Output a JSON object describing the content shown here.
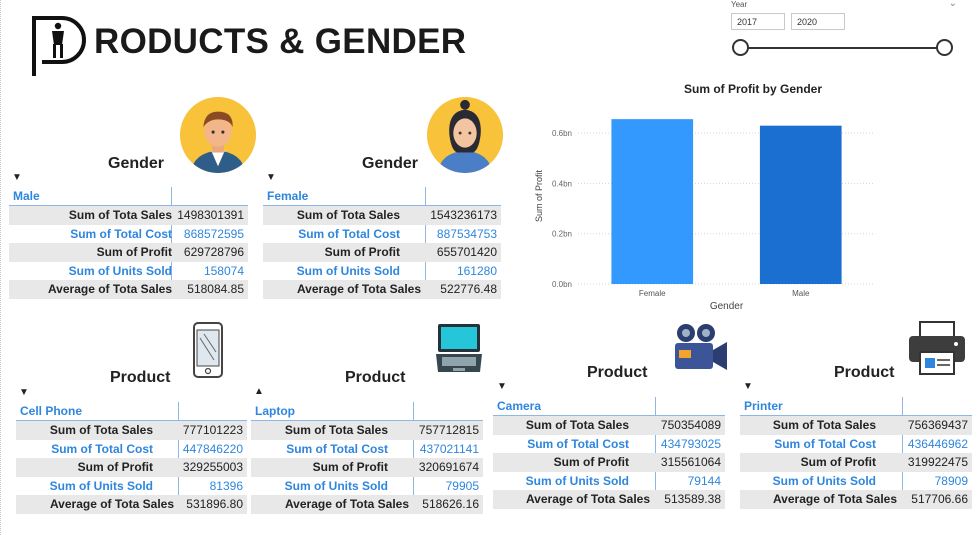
{
  "header": {
    "title": "RODUCTS & GENDER"
  },
  "slicer": {
    "label": "Year",
    "from": "2017",
    "to": "2020"
  },
  "gender_tables": [
    {
      "section_title": "Gender",
      "header": "Male",
      "rows": [
        {
          "label": "Sum of Tota Sales",
          "value": "1498301391"
        },
        {
          "label": "Sum of Total Cost",
          "value": "868572595"
        },
        {
          "label": "Sum of Profit",
          "value": "629728796"
        },
        {
          "label": "Sum of Units Sold",
          "value": "158074"
        },
        {
          "label": "Average of Tota Sales",
          "value": "518084.85"
        }
      ]
    },
    {
      "section_title": "Gender",
      "header": "Female",
      "rows": [
        {
          "label": "Sum of Tota Sales",
          "value": "1543236173"
        },
        {
          "label": "Sum of Total Cost",
          "value": "887534753"
        },
        {
          "label": "Sum of Profit",
          "value": "655701420"
        },
        {
          "label": "Sum of Units Sold",
          "value": "161280"
        },
        {
          "label": "Average of Tota Sales",
          "value": "522776.48"
        }
      ]
    }
  ],
  "product_tables": [
    {
      "section_title": "Product",
      "header": "Cell Phone",
      "rows": [
        {
          "label": "Sum of Tota Sales",
          "value": "777101223"
        },
        {
          "label": "Sum of Total Cost",
          "value": "447846220"
        },
        {
          "label": "Sum of Profit",
          "value": "329255003"
        },
        {
          "label": "Sum of Units Sold",
          "value": "81396"
        },
        {
          "label": "Average of Tota Sales",
          "value": "531896.80"
        }
      ]
    },
    {
      "section_title": "Product",
      "header": "Laptop",
      "rows": [
        {
          "label": "Sum of Tota Sales",
          "value": "757712815"
        },
        {
          "label": "Sum of Total Cost",
          "value": "437021141"
        },
        {
          "label": "Sum of Profit",
          "value": "320691674"
        },
        {
          "label": "Sum of Units Sold",
          "value": "79905"
        },
        {
          "label": "Average of Tota Sales",
          "value": "518626.16"
        }
      ]
    },
    {
      "section_title": "Product",
      "header": "Camera",
      "rows": [
        {
          "label": "Sum of Tota Sales",
          "value": "750354089"
        },
        {
          "label": "Sum of Total Cost",
          "value": "434793025"
        },
        {
          "label": "Sum of Profit",
          "value": "315561064"
        },
        {
          "label": "Sum of Units Sold",
          "value": "79144"
        },
        {
          "label": "Average of Tota Sales",
          "value": "513589.38"
        }
      ]
    },
    {
      "section_title": "Product",
      "header": "Printer",
      "rows": [
        {
          "label": "Sum of Tota Sales",
          "value": "756369437"
        },
        {
          "label": "Sum of Total Cost",
          "value": "436446962"
        },
        {
          "label": "Sum of Profit",
          "value": "319922475"
        },
        {
          "label": "Sum of Units Sold",
          "value": "78909"
        },
        {
          "label": "Average of Tota Sales",
          "value": "517706.66"
        }
      ]
    }
  ],
  "chart_data": {
    "type": "bar",
    "title": "Sum of Profit by Gender",
    "xlabel": "Gender",
    "ylabel": "Sum of Profit",
    "categories": [
      "Female",
      "Male"
    ],
    "values": [
      0.6557,
      0.6297
    ],
    "y_ticks": [
      "0.0bn",
      "0.2bn",
      "0.4bn",
      "0.6bn"
    ],
    "ylim": [
      0,
      0.7
    ],
    "grid": true,
    "colors": [
      "#3399ff",
      "#1a6fd1"
    ]
  }
}
